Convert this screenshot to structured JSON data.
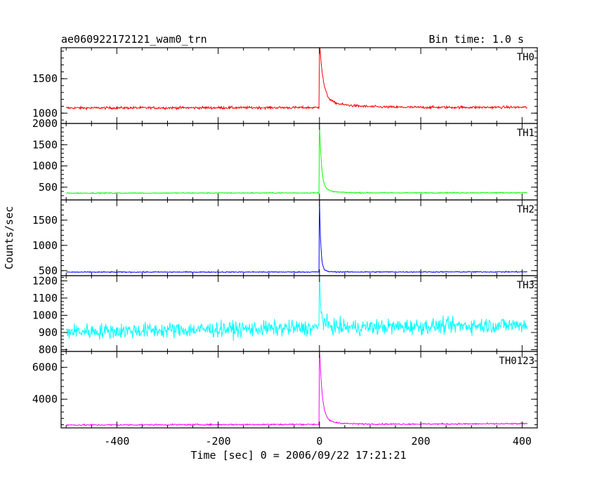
{
  "header": {
    "title": "ae060922172121_wam0_trn",
    "bin_time": "Bin time: 1.0 s"
  },
  "chart_data": {
    "type": "line",
    "title": "ae060922172121_wam0_trn",
    "xlabel": "Time [sec] 0 = 2006/09/22 17:21:21",
    "ylabel": "Counts/sec",
    "xlim": [
      -510,
      430
    ],
    "x_ticks": [
      -400,
      -200,
      0,
      200,
      400
    ],
    "x_range": [
      -500,
      410
    ],
    "grid": false,
    "panels": [
      {
        "name": "TH0",
        "color": "#ff0000",
        "ylim": [
          850,
          1950
        ],
        "yticks": [
          1000,
          1500
        ],
        "baseline_start": 1075,
        "baseline_end": 1085,
        "noise": 18,
        "peak": 1950,
        "peak_x": 0,
        "decay_sec": 7,
        "tail": 120,
        "tail_decay_sec": 45
      },
      {
        "name": "TH1",
        "color": "#00ff00",
        "ylim": [
          200,
          2000
        ],
        "yticks": [
          500,
          1000,
          1500,
          2000
        ],
        "baseline_start": 360,
        "baseline_end": 370,
        "noise": 12,
        "peak": 1900,
        "peak_x": 0,
        "decay_sec": 4,
        "tail": 120,
        "tail_decay_sec": 20
      },
      {
        "name": "TH2",
        "color": "#0000ff",
        "ylim": [
          400,
          1900
        ],
        "yticks": [
          500,
          1000,
          1500
        ],
        "baseline_start": 470,
        "baseline_end": 475,
        "noise": 10,
        "peak": 1900,
        "peak_x": 0,
        "decay_sec": 2.5,
        "tail": 60,
        "tail_decay_sec": 10
      },
      {
        "name": "TH3",
        "color": "#00ffff",
        "ylim": [
          790,
          1230
        ],
        "yticks": [
          800,
          900,
          1000,
          1100,
          1200
        ],
        "baseline_start": 905,
        "baseline_end": 945,
        "noise": 45,
        "peak": 1230,
        "peak_x": 0,
        "decay_sec": 2,
        "tail": 60,
        "tail_decay_sec": 12
      },
      {
        "name": "TH0123",
        "color": "#ff00ff",
        "ylim": [
          2200,
          7000
        ],
        "yticks": [
          4000,
          6000
        ],
        "baseline_start": 2380,
        "baseline_end": 2460,
        "noise": 45,
        "peak": 7000,
        "peak_x": 0,
        "decay_sec": 5,
        "tail": 400,
        "tail_decay_sec": 25
      }
    ]
  }
}
